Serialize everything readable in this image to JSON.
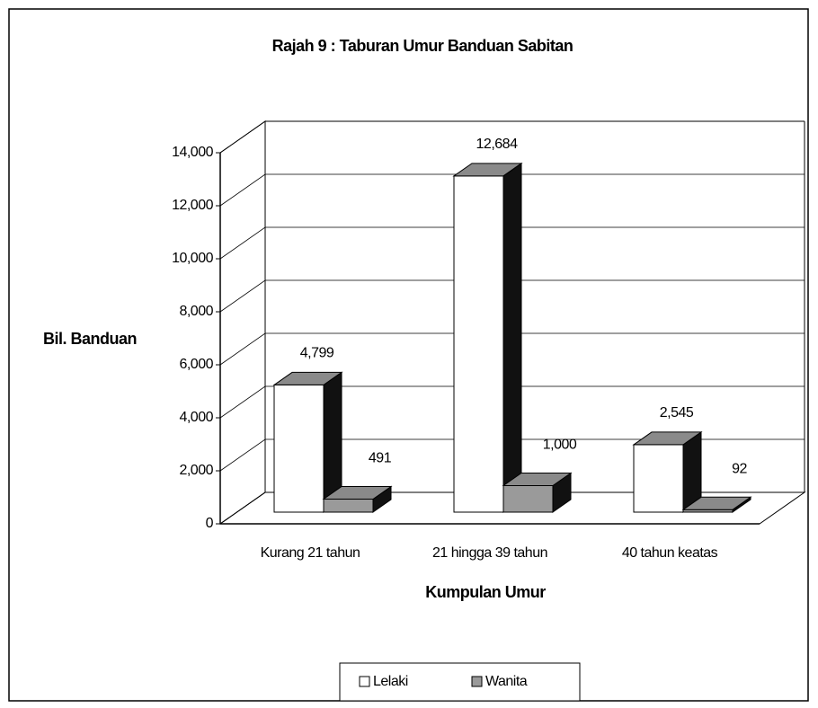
{
  "chart_data": {
    "type": "bar3d",
    "title": "Rajah 9 : Taburan Umur Banduan Sabitan",
    "xlabel": "Kumpulan Umur",
    "ylabel": "Bil. Banduan",
    "categories": [
      "Kurang 21 tahun",
      "21 hingga 39 tahun",
      "40 tahun keatas"
    ],
    "series": [
      {
        "name": "Lelaki",
        "color": "#ffffff",
        "values": [
          4799,
          12684,
          2545
        ],
        "value_labels": [
          "4,799",
          "12,684",
          "2,545"
        ]
      },
      {
        "name": "Wanita",
        "color": "#9a9a9a",
        "values": [
          491,
          1000,
          92
        ],
        "value_labels": [
          "491",
          "1,000",
          "92"
        ]
      }
    ],
    "ylim": [
      0,
      14000
    ],
    "yticks": [
      0,
      {
        "value": 2000,
        "label": "2,000"
      },
      {
        "value": 4000,
        "label": "4,000"
      },
      {
        "value": 6000,
        "label": "6,000"
      },
      {
        "value": 8000,
        "label": "8,000"
      },
      {
        "value": 10000,
        "label": "10,000"
      },
      {
        "value": 12000,
        "label": "12,000"
      },
      {
        "value": 14000,
        "label": "14,000"
      }
    ],
    "grid": true,
    "legend": "bottom"
  }
}
